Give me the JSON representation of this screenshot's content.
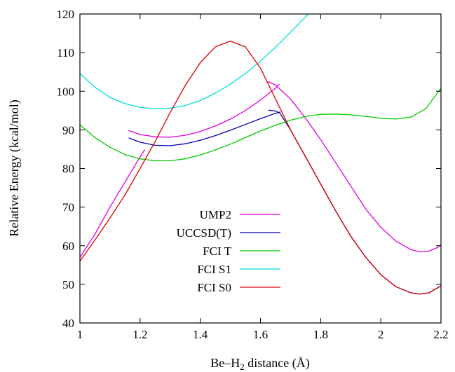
{
  "chart_data": {
    "type": "line",
    "title": "",
    "xlabel": "Be–H",
    "xlabel_subscript": "2",
    "xlabel_suffix": " distance (Å)",
    "ylabel": "Relative Energy (kcal/mol)",
    "xlim": [
      1.0,
      2.2
    ],
    "ylim": [
      40,
      120
    ],
    "xticks": [
      1,
      1.2,
      1.4,
      1.6,
      1.8,
      2,
      2.2
    ],
    "xtick_labels": [
      "1",
      "1.2",
      "1.4",
      "1.6",
      "1.8",
      "2",
      "2.2"
    ],
    "yticks": [
      40,
      50,
      60,
      70,
      80,
      90,
      100,
      110,
      120
    ],
    "ytick_labels": [
      "40",
      "50",
      "60",
      "70",
      "80",
      "90",
      "100",
      "110",
      "120"
    ],
    "grid": false,
    "legend_position": "center-left",
    "series": [
      {
        "name": "UMP2",
        "color": "#e000e0",
        "segments": [
          [
            [
              1.0,
              57.0
            ],
            [
              1.05,
              63.0
            ],
            [
              1.1,
              70.0
            ],
            [
              1.15,
              76.5
            ],
            [
              1.2,
              83.0
            ],
            [
              1.215,
              84.8
            ]
          ],
          [
            [
              1.163,
              89.8
            ],
            [
              1.2,
              88.8
            ],
            [
              1.25,
              88.2
            ],
            [
              1.3,
              88.1
            ],
            [
              1.35,
              88.6
            ],
            [
              1.4,
              89.6
            ],
            [
              1.45,
              91.0
            ],
            [
              1.5,
              92.8
            ],
            [
              1.55,
              95.0
            ],
            [
              1.6,
              97.7
            ],
            [
              1.65,
              100.8
            ],
            [
              1.662,
              101.8
            ]
          ],
          [
            [
              1.625,
              102.5
            ],
            [
              1.65,
              101.6
            ],
            [
              1.7,
              98.0
            ],
            [
              1.75,
              93.0
            ],
            [
              1.8,
              87.5
            ],
            [
              1.85,
              81.5
            ],
            [
              1.9,
              75.5
            ],
            [
              1.95,
              69.5
            ],
            [
              2.0,
              64.8
            ],
            [
              2.05,
              61.2
            ],
            [
              2.1,
              59.0
            ],
            [
              2.13,
              58.4
            ],
            [
              2.16,
              58.6
            ],
            [
              2.19,
              59.6
            ],
            [
              2.2,
              60.2
            ]
          ]
        ]
      },
      {
        "name": "UCCSD(T)",
        "color": "#0000b0",
        "segments": [
          [
            [
              1.163,
              87.9
            ],
            [
              1.2,
              86.8
            ],
            [
              1.25,
              86.0
            ],
            [
              1.3,
              85.9
            ],
            [
              1.35,
              86.4
            ],
            [
              1.4,
              87.3
            ],
            [
              1.45,
              88.5
            ],
            [
              1.5,
              89.9
            ],
            [
              1.55,
              91.4
            ],
            [
              1.6,
              92.9
            ],
            [
              1.65,
              94.3
            ],
            [
              1.665,
              94.6
            ]
          ],
          [
            [
              1.628,
              95.1
            ],
            [
              1.65,
              94.9
            ],
            [
              1.665,
              94.3
            ],
            [
              1.7,
              90.0
            ],
            [
              1.75,
              83.0
            ],
            [
              1.8,
              76.0
            ],
            [
              1.85,
              69.0
            ],
            [
              1.9,
              62.5
            ],
            [
              1.95,
              57.0
            ],
            [
              2.0,
              52.5
            ],
            [
              2.05,
              49.4
            ],
            [
              2.1,
              47.8
            ],
            [
              2.13,
              47.5
            ],
            [
              2.16,
              47.8
            ],
            [
              2.2,
              49.6
            ]
          ]
        ]
      },
      {
        "name": "FCI T",
        "color": "#00cc00",
        "segments": [
          [
            [
              1.0,
              91.3
            ],
            [
              1.05,
              88.0
            ],
            [
              1.1,
              85.5
            ],
            [
              1.15,
              83.6
            ],
            [
              1.2,
              82.5
            ],
            [
              1.25,
              82.0
            ],
            [
              1.3,
              82.0
            ],
            [
              1.35,
              82.5
            ],
            [
              1.4,
              83.5
            ],
            [
              1.45,
              84.8
            ],
            [
              1.5,
              86.3
            ],
            [
              1.55,
              88.0
            ],
            [
              1.6,
              89.7
            ],
            [
              1.65,
              91.2
            ],
            [
              1.7,
              92.5
            ],
            [
              1.75,
              93.5
            ],
            [
              1.8,
              94.0
            ],
            [
              1.85,
              94.1
            ],
            [
              1.9,
              93.9
            ],
            [
              1.95,
              93.5
            ],
            [
              2.0,
              93.0
            ],
            [
              2.05,
              92.8
            ],
            [
              2.1,
              93.3
            ],
            [
              2.15,
              95.5
            ],
            [
              2.2,
              100.8
            ]
          ]
        ]
      },
      {
        "name": "FCI S1",
        "color": "#00e0e0",
        "segments": [
          [
            [
              1.0,
              104.6
            ],
            [
              1.05,
              101.0
            ],
            [
              1.1,
              98.4
            ],
            [
              1.15,
              96.8
            ],
            [
              1.2,
              95.8
            ],
            [
              1.25,
              95.5
            ],
            [
              1.3,
              95.6
            ],
            [
              1.35,
              96.3
            ],
            [
              1.4,
              97.6
            ],
            [
              1.45,
              99.5
            ],
            [
              1.5,
              101.8
            ],
            [
              1.55,
              104.6
            ],
            [
              1.6,
              107.8
            ],
            [
              1.65,
              111.4
            ],
            [
              1.7,
              115.3
            ],
            [
              1.75,
              119.3
            ],
            [
              1.76,
              120.0
            ]
          ]
        ]
      },
      {
        "name": "FCI S0",
        "color": "#e00000",
        "segments": [
          [
            [
              1.0,
              56.0
            ],
            [
              1.05,
              61.5
            ],
            [
              1.1,
              67.2
            ],
            [
              1.15,
              73.2
            ],
            [
              1.2,
              80.0
            ],
            [
              1.25,
              87.0
            ],
            [
              1.3,
              94.5
            ],
            [
              1.35,
              101.5
            ],
            [
              1.4,
              107.4
            ],
            [
              1.45,
              111.5
            ],
            [
              1.5,
              113.0
            ],
            [
              1.55,
              111.5
            ],
            [
              1.6,
              106.0
            ],
            [
              1.65,
              98.0
            ],
            [
              1.7,
              90.0
            ],
            [
              1.75,
              83.0
            ],
            [
              1.8,
              76.0
            ],
            [
              1.85,
              69.0
            ],
            [
              1.9,
              62.5
            ],
            [
              1.95,
              57.0
            ],
            [
              2.0,
              52.5
            ],
            [
              2.05,
              49.4
            ],
            [
              2.1,
              47.8
            ],
            [
              2.13,
              47.5
            ],
            [
              2.16,
              47.8
            ],
            [
              2.2,
              49.6
            ]
          ]
        ]
      }
    ],
    "legend_order": [
      "UMP2",
      "UCCSD(T)",
      "FCI T",
      "FCI S1",
      "FCI S0"
    ]
  }
}
